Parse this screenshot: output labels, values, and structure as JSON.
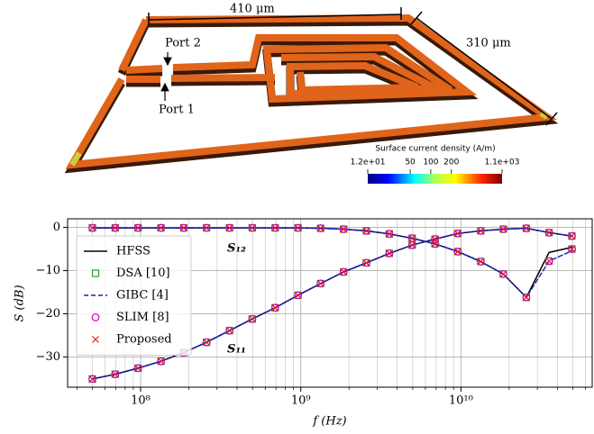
{
  "figure": {
    "dimensions": [
      "410 μm",
      "310 μm"
    ],
    "ports": [
      "Port 2",
      "Port 1"
    ],
    "colorbar": {
      "label": "Surface current density (A/m)",
      "lim": [
        12,
        1100
      ],
      "log": true,
      "ticks": [
        {
          "value": 12,
          "label": "1.2e+01"
        },
        50,
        100,
        200,
        {
          "value": 1100,
          "label": "1.1e+03"
        }
      ]
    }
  },
  "chart_data": {
    "type": "line",
    "xlabel": "f (Hz)",
    "ylabel": "S (dB)",
    "xlog": true,
    "grid": true,
    "xlim": [
      35000000.0,
      66000000000.0
    ],
    "ylim": [
      -37,
      2
    ],
    "xticks": [
      {
        "value": 100000000.0,
        "label": "10⁸"
      },
      {
        "value": 1000000000.0,
        "label": "10⁹"
      },
      {
        "value": 10000000000.0,
        "label": "10¹⁰"
      }
    ],
    "xminorticks": [
      40000000.0,
      50000000.0,
      60000000.0,
      70000000.0,
      80000000.0,
      90000000.0,
      200000000.0,
      300000000.0,
      400000000.0,
      500000000.0,
      600000000.0,
      700000000.0,
      800000000.0,
      900000000.0,
      2000000000.0,
      3000000000.0,
      4000000000.0,
      5000000000.0,
      6000000000.0,
      7000000000.0,
      8000000000.0,
      9000000000.0,
      20000000000.0,
      30000000000.0,
      40000000000.0,
      50000000000.0,
      60000000000.0
    ],
    "yticks": [
      {
        "value": -30,
        "label": "−30"
      },
      {
        "value": -20,
        "label": "−20"
      },
      {
        "value": -10,
        "label": "−10"
      },
      0
    ],
    "curve_labels": [
      "S₁₂",
      "S₁₁"
    ],
    "legend": "upper left",
    "x": [
      50000000.0,
      69400000.0,
      96400000.0,
      134000000.0,
      186000000.0,
      258000000.0,
      359000000.0,
      498000000.0,
      692000000.0,
      961000000.0,
      1330000000.0,
      1850000000.0,
      2570000000.0,
      3570000000.0,
      4960000000.0,
      6890000000.0,
      9560000000.0,
      13300000000.0,
      18400000000.0,
      25600000000.0,
      35500000000.0,
      49300000000.0
    ],
    "series": [
      {
        "name": "HFSS",
        "color": "#000000",
        "marker": "line",
        "dashed": false,
        "values": [
          [
            -0.1,
            -0.1,
            -0.1,
            -0.1,
            -0.1,
            -0.1,
            -0.1,
            -0.1,
            -0.1,
            -0.1,
            -0.2,
            -0.4,
            -0.8,
            -1.5,
            -2.5,
            -3.8,
            -5.6,
            -7.9,
            -10.8,
            -16.2,
            -5.8,
            -4.6
          ],
          [
            -35.1,
            -34.0,
            -32.6,
            -31.0,
            -29.0,
            -26.6,
            -23.9,
            -21.2,
            -18.6,
            -15.7,
            -13.0,
            -10.3,
            -8.2,
            -6.0,
            -4.1,
            -2.7,
            -1.4,
            -0.8,
            -0.4,
            -0.2,
            -1.2,
            -2.0
          ]
        ]
      },
      {
        "name": "DSA [10]",
        "color": "#2ca02c",
        "marker": "square",
        "dashed": false,
        "values": [
          [
            -0.1,
            -0.1,
            -0.1,
            -0.1,
            -0.1,
            -0.1,
            -0.1,
            -0.1,
            -0.1,
            -0.1,
            -0.2,
            -0.4,
            -0.8,
            -1.5,
            -2.5,
            -3.8,
            -5.6,
            -7.9,
            -10.8,
            -16.2,
            -7.8,
            -5.0
          ],
          [
            -35.1,
            -34.0,
            -32.6,
            -31.0,
            -29.0,
            -26.6,
            -23.9,
            -21.2,
            -18.6,
            -15.7,
            -13.0,
            -10.3,
            -8.2,
            -6.0,
            -4.1,
            -2.7,
            -1.4,
            -0.8,
            -0.4,
            -0.2,
            -1.2,
            -2.0
          ]
        ]
      },
      {
        "name": "GIBC [4]",
        "color": "#1f1fbf",
        "marker": "line",
        "dashed": true,
        "values": [
          [
            -0.1,
            -0.1,
            -0.1,
            -0.1,
            -0.1,
            -0.1,
            -0.1,
            -0.1,
            -0.1,
            -0.1,
            -0.2,
            -0.4,
            -0.8,
            -1.5,
            -2.5,
            -3.8,
            -5.6,
            -7.9,
            -10.8,
            -16.2,
            -7.8,
            -5.4
          ],
          [
            -35.1,
            -34.0,
            -32.6,
            -31.0,
            -29.0,
            -26.6,
            -23.9,
            -21.2,
            -18.6,
            -15.7,
            -13.0,
            -10.3,
            -8.2,
            -6.0,
            -4.1,
            -2.7,
            -1.4,
            -0.8,
            -0.4,
            -0.2,
            -1.2,
            -2.0
          ]
        ]
      },
      {
        "name": "SLIM [8]",
        "color": "#cc00cc",
        "marker": "circle",
        "dashed": false,
        "values": [
          [
            -0.1,
            -0.1,
            -0.1,
            -0.1,
            -0.1,
            -0.1,
            -0.1,
            -0.1,
            -0.1,
            -0.1,
            -0.2,
            -0.4,
            -0.8,
            -1.5,
            -2.5,
            -3.8,
            -5.6,
            -7.9,
            -10.8,
            -16.2,
            -7.8,
            -5.0
          ],
          [
            -35.1,
            -34.0,
            -32.6,
            -31.0,
            -29.0,
            -26.6,
            -23.9,
            -21.2,
            -18.6,
            -15.7,
            -13.0,
            -10.3,
            -8.2,
            -6.0,
            -4.1,
            -2.7,
            -1.4,
            -0.8,
            -0.4,
            -0.2,
            -1.2,
            -2.0
          ]
        ]
      },
      {
        "name": "Proposed",
        "color": "#e41a1c",
        "marker": "x",
        "dashed": false,
        "values": [
          [
            -0.1,
            -0.1,
            -0.1,
            -0.1,
            -0.1,
            -0.1,
            -0.1,
            -0.1,
            -0.1,
            -0.1,
            -0.2,
            -0.4,
            -0.8,
            -1.5,
            -2.5,
            -3.8,
            -5.6,
            -7.9,
            -10.8,
            -16.2,
            -7.8,
            -5.0
          ],
          [
            -35.1,
            -34.0,
            -32.6,
            -31.0,
            -29.0,
            -26.6,
            -23.9,
            -21.2,
            -18.6,
            -15.7,
            -13.0,
            -10.3,
            -8.2,
            -6.0,
            -4.1,
            -2.7,
            -1.4,
            -0.8,
            -0.4,
            -0.2,
            -1.2,
            -2.0
          ]
        ]
      }
    ]
  }
}
